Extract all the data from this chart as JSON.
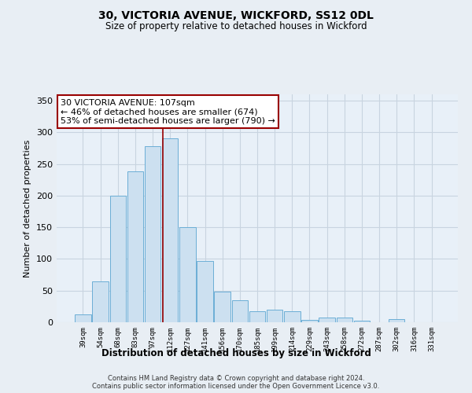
{
  "title": "30, VICTORIA AVENUE, WICKFORD, SS12 0DL",
  "subtitle": "Size of property relative to detached houses in Wickford",
  "xlabel": "Distribution of detached houses by size in Wickford",
  "ylabel": "Number of detached properties",
  "bar_labels": [
    "39sqm",
    "54sqm",
    "68sqm",
    "83sqm",
    "97sqm",
    "112sqm",
    "127sqm",
    "141sqm",
    "156sqm",
    "170sqm",
    "185sqm",
    "199sqm",
    "214sqm",
    "229sqm",
    "243sqm",
    "258sqm",
    "272sqm",
    "287sqm",
    "302sqm",
    "316sqm",
    "331sqm"
  ],
  "bar_values": [
    13,
    65,
    200,
    238,
    278,
    291,
    150,
    97,
    48,
    35,
    18,
    20,
    18,
    4,
    8,
    7,
    2,
    0,
    5,
    0,
    0
  ],
  "bar_color": "#cce0f0",
  "bar_edge_color": "#6baed6",
  "highlight_color": "#990000",
  "ylim": [
    0,
    360
  ],
  "yticks": [
    0,
    50,
    100,
    150,
    200,
    250,
    300,
    350
  ],
  "annotation_title": "30 VICTORIA AVENUE: 107sqm",
  "annotation_line1": "← 46% of detached houses are smaller (674)",
  "annotation_line2": "53% of semi-detached houses are larger (790) →",
  "footnote1": "Contains HM Land Registry data © Crown copyright and database right 2024.",
  "footnote2": "Contains public sector information licensed under the Open Government Licence v3.0.",
  "bg_color": "#e8eef4",
  "plot_bg_color": "#e8f0f8",
  "grid_color": "#c8d4e0"
}
